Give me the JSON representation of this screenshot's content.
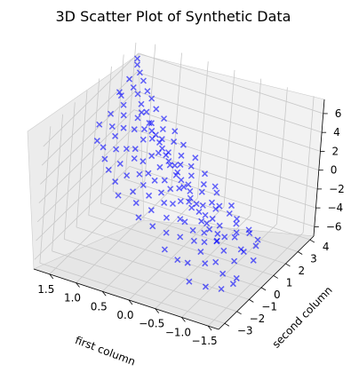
{
  "chart_data": {
    "type": "scatter",
    "projection": "3d",
    "title": "3D Scatter Plot of Synthetic Data",
    "xlabel": "first column",
    "ylabel": "second column",
    "zlabel": "",
    "xlim": [
      -1.7,
      1.8
    ],
    "ylim": [
      -3.5,
      4.3
    ],
    "zlim": [
      -7,
      7.5
    ],
    "xticks": [
      -1.5,
      -1.0,
      -0.5,
      0.0,
      0.5,
      1.0,
      1.5
    ],
    "xtick_labels": [
      "−1.5",
      "−1.0",
      "−0.5",
      "0.0",
      "0.5",
      "1.0",
      "1.5"
    ],
    "yticks": [
      -3,
      -2,
      -1,
      0,
      1,
      2,
      3,
      4
    ],
    "ytick_labels": [
      "−3",
      "−2",
      "−1",
      "0",
      "1",
      "2",
      "3",
      "4"
    ],
    "zticks": [
      -6,
      -4,
      -2,
      0,
      2,
      4,
      6
    ],
    "ztick_labels": [
      "−6",
      "−4",
      "−2",
      "0",
      "2",
      "4",
      "6"
    ],
    "grid": true,
    "marker": "x",
    "marker_color": "#0000ff",
    "marker_alpha": 0.6,
    "series": [
      {
        "points": [
          [
            -1.6,
            -0.4,
            -3.8
          ],
          [
            -1.55,
            -1.8,
            -4.6
          ],
          [
            -1.5,
            0.2,
            -3.2
          ],
          [
            -1.48,
            -1.2,
            -4.9
          ],
          [
            -1.45,
            -0.6,
            -2.9
          ],
          [
            -1.4,
            0.8,
            -3.5
          ],
          [
            -1.38,
            -2.0,
            -5.2
          ],
          [
            -1.35,
            -0.9,
            -3.7
          ],
          [
            -1.3,
            0.5,
            -2.6
          ],
          [
            -1.28,
            -1.5,
            -4.4
          ],
          [
            -1.25,
            0.1,
            -3.9
          ],
          [
            -1.2,
            -0.3,
            -2.2
          ],
          [
            -1.18,
            1.0,
            -3.1
          ],
          [
            -1.15,
            -2.3,
            -5.0
          ],
          [
            -1.1,
            -0.7,
            -3.3
          ],
          [
            -1.08,
            0.4,
            -2.8
          ],
          [
            -1.05,
            -1.1,
            -4.1
          ],
          [
            -1.0,
            0.7,
            -2.4
          ],
          [
            -0.98,
            -1.7,
            -3.6
          ],
          [
            -0.95,
            0.0,
            -3.0
          ],
          [
            -0.92,
            -0.5,
            -2.1
          ],
          [
            -0.9,
            1.2,
            -2.7
          ],
          [
            -0.88,
            -2.5,
            -4.7
          ],
          [
            -0.85,
            -0.2,
            -3.4
          ],
          [
            -0.82,
            0.9,
            -1.9
          ],
          [
            -0.8,
            -1.3,
            -3.2
          ],
          [
            -0.78,
            0.3,
            -2.5
          ],
          [
            -0.75,
            -0.8,
            -2.9
          ],
          [
            -0.72,
            1.5,
            -2.0
          ],
          [
            -0.7,
            -1.9,
            -3.8
          ],
          [
            -0.68,
            0.1,
            -1.7
          ],
          [
            -0.65,
            -0.4,
            -2.6
          ],
          [
            -0.62,
            0.6,
            -1.4
          ],
          [
            -0.6,
            -1.0,
            -2.8
          ],
          [
            -0.58,
            1.1,
            -1.8
          ],
          [
            -0.55,
            -2.1,
            -3.5
          ],
          [
            -0.52,
            -0.1,
            -2.0
          ],
          [
            -0.5,
            0.8,
            -1.2
          ],
          [
            -0.48,
            -0.6,
            -2.4
          ],
          [
            -0.45,
            1.4,
            -1.0
          ],
          [
            -0.42,
            -1.4,
            -2.2
          ],
          [
            -0.4,
            0.2,
            -1.6
          ],
          [
            -0.38,
            -0.9,
            -1.3
          ],
          [
            -0.35,
            1.7,
            -0.9
          ],
          [
            -0.32,
            -2.2,
            -2.7
          ],
          [
            -0.3,
            0.0,
            -1.1
          ],
          [
            -0.28,
            0.9,
            -0.6
          ],
          [
            -0.25,
            -0.7,
            -1.5
          ],
          [
            -0.22,
            1.3,
            -0.4
          ],
          [
            -0.2,
            -1.6,
            -1.9
          ],
          [
            -0.18,
            0.4,
            -0.8
          ],
          [
            -0.15,
            -0.3,
            -0.3
          ],
          [
            -0.12,
            1.8,
            -0.1
          ],
          [
            -0.1,
            -1.2,
            -1.0
          ],
          [
            -0.08,
            0.6,
            0.2
          ],
          [
            -0.05,
            -0.5,
            -0.5
          ],
          [
            -0.02,
            1.1,
            0.4
          ],
          [
            0.0,
            -1.9,
            -1.2
          ],
          [
            0.02,
            0.3,
            0.0
          ],
          [
            0.05,
            -0.8,
            -0.2
          ],
          [
            0.08,
            1.5,
            0.7
          ],
          [
            0.1,
            -0.1,
            0.3
          ],
          [
            0.12,
            2.0,
            0.9
          ],
          [
            0.15,
            -1.4,
            -0.4
          ],
          [
            0.18,
            0.7,
            0.6
          ],
          [
            0.2,
            -0.4,
            0.1
          ],
          [
            0.22,
            1.2,
            1.0
          ],
          [
            0.25,
            -2.0,
            -0.6
          ],
          [
            0.28,
            0.2,
            0.5
          ],
          [
            0.3,
            1.6,
            1.3
          ],
          [
            0.32,
            -0.9,
            0.2
          ],
          [
            0.35,
            0.9,
            1.1
          ],
          [
            0.38,
            -0.2,
            0.8
          ],
          [
            0.4,
            2.2,
            1.5
          ],
          [
            0.42,
            -1.5,
            0.0
          ],
          [
            0.45,
            0.5,
            1.2
          ],
          [
            0.48,
            1.3,
            1.7
          ],
          [
            0.5,
            -0.6,
            0.6
          ],
          [
            0.52,
            1.9,
            2.0
          ],
          [
            0.55,
            0.0,
            1.0
          ],
          [
            0.58,
            -1.1,
            0.4
          ],
          [
            0.6,
            1.0,
            1.8
          ],
          [
            0.62,
            2.4,
            2.3
          ],
          [
            0.65,
            -0.3,
            1.1
          ],
          [
            0.68,
            0.8,
            1.6
          ],
          [
            0.7,
            1.7,
            2.2
          ],
          [
            0.72,
            -1.7,
            0.5
          ],
          [
            0.75,
            0.4,
            1.4
          ],
          [
            0.78,
            2.1,
            2.6
          ],
          [
            0.8,
            -0.7,
            1.2
          ],
          [
            0.82,
            1.4,
            2.4
          ],
          [
            0.85,
            0.1,
            1.9
          ],
          [
            0.88,
            2.6,
            2.9
          ],
          [
            0.9,
            -1.2,
            1.0
          ],
          [
            0.92,
            1.1,
            2.5
          ],
          [
            0.95,
            0.6,
            2.1
          ],
          [
            0.98,
            2.0,
            3.0
          ],
          [
            1.0,
            -0.4,
            1.7
          ],
          [
            1.02,
            1.6,
            2.8
          ],
          [
            1.05,
            0.3,
            2.3
          ],
          [
            1.08,
            2.8,
            3.3
          ],
          [
            1.1,
            -0.9,
            1.5
          ],
          [
            1.12,
            1.2,
            3.1
          ],
          [
            1.15,
            2.3,
            3.5
          ],
          [
            1.18,
            0.0,
            2.4
          ],
          [
            1.2,
            1.8,
            3.4
          ],
          [
            1.22,
            3.0,
            3.9
          ],
          [
            1.25,
            -0.6,
            2.0
          ],
          [
            1.28,
            1.0,
            3.2
          ],
          [
            1.3,
            2.5,
            3.8
          ],
          [
            1.32,
            0.5,
            2.9
          ],
          [
            1.35,
            3.2,
            4.2
          ],
          [
            1.38,
            -0.2,
            2.5
          ],
          [
            1.4,
            1.5,
            3.7
          ],
          [
            1.42,
            2.7,
            4.4
          ],
          [
            1.45,
            0.8,
            3.3
          ],
          [
            1.48,
            3.4,
            4.8
          ],
          [
            1.5,
            1.9,
            4.1
          ],
          [
            1.52,
            -0.1,
            2.8
          ],
          [
            1.55,
            2.9,
            4.6
          ],
          [
            1.58,
            1.2,
            3.9
          ],
          [
            1.6,
            3.6,
            5.2
          ],
          [
            1.62,
            2.2,
            4.5
          ],
          [
            1.65,
            0.6,
            3.4
          ],
          [
            1.68,
            3.1,
            5.0
          ],
          [
            1.7,
            3.8,
            5.6
          ],
          [
            1.72,
            2.5,
            4.3
          ],
          [
            1.75,
            4.0,
            5.9
          ],
          [
            -0.6,
            0.0,
            -2.2
          ],
          [
            -0.4,
            0.5,
            -1.3
          ],
          [
            -0.2,
            0.2,
            -0.9
          ],
          [
            0.0,
            0.6,
            -0.2
          ],
          [
            0.2,
            0.9,
            0.6
          ],
          [
            0.4,
            1.0,
            1.3
          ],
          [
            0.6,
            1.3,
            1.9
          ],
          [
            0.8,
            1.6,
            2.6
          ],
          [
            1.0,
            1.9,
            3.1
          ],
          [
            1.2,
            2.1,
            3.6
          ],
          [
            -0.9,
            -0.4,
            -3.0
          ],
          [
            -0.7,
            -0.2,
            -2.4
          ],
          [
            -0.5,
            0.3,
            -1.9
          ],
          [
            -0.3,
            0.4,
            -1.2
          ],
          [
            -0.1,
            0.7,
            -0.6
          ],
          [
            0.1,
            0.8,
            0.1
          ],
          [
            0.3,
            1.1,
            0.9
          ],
          [
            0.5,
            1.2,
            1.5
          ],
          [
            0.7,
            1.5,
            2.1
          ],
          [
            0.9,
            1.7,
            2.7
          ]
        ]
      }
    ]
  }
}
